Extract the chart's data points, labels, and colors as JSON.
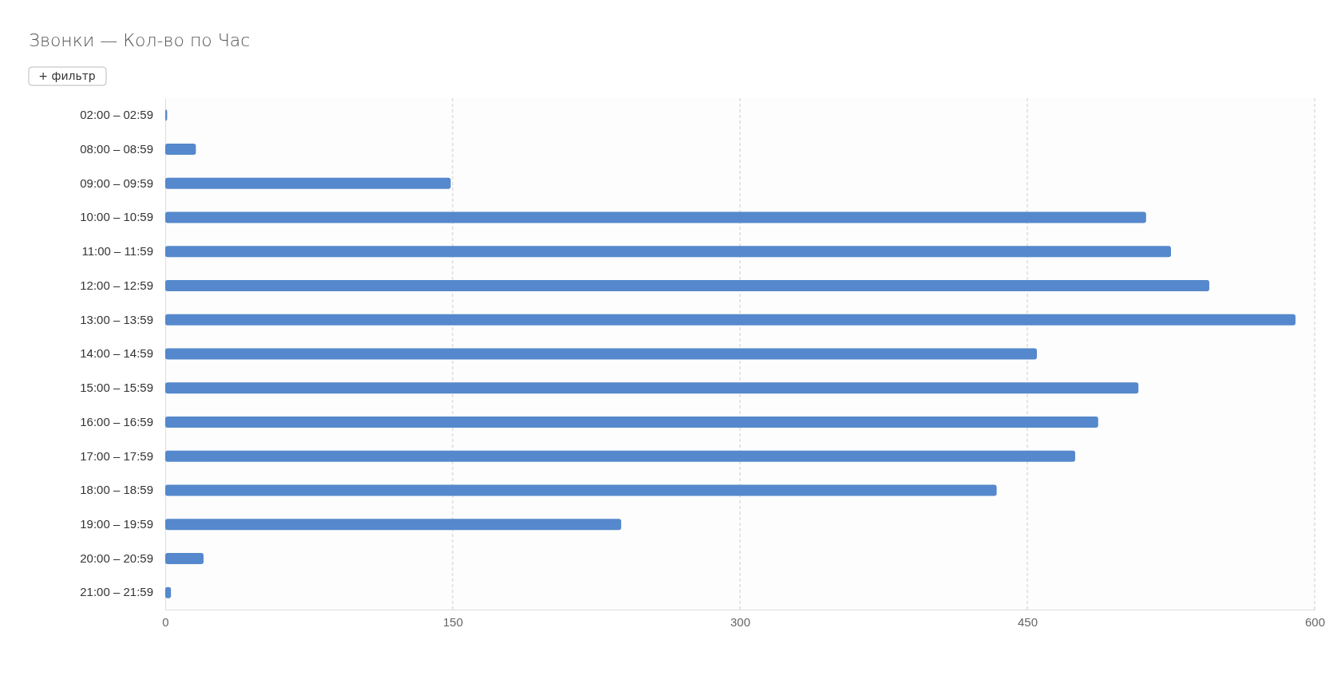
{
  "chart_data": {
    "type": "bar",
    "orientation": "horizontal",
    "title": "Звонки — Кол-во по Час",
    "annotations": [
      "+ фильтр"
    ],
    "categories": [
      "02:00 – 02:59",
      "08:00 – 08:59",
      "09:00 – 09:59",
      "10:00 – 10:59",
      "11:00 – 11:59",
      "12:00 – 12:59",
      "13:00 – 13:59",
      "14:00 – 14:59",
      "15:00 – 15:59",
      "16:00 – 16:59",
      "17:00 – 17:59",
      "18:00 – 18:59",
      "19:00 – 19:59",
      "20:00 – 20:59",
      "21:00 – 21:59"
    ],
    "values": [
      1,
      16,
      149,
      512,
      525,
      545,
      590,
      455,
      508,
      487,
      475,
      434,
      238,
      20,
      3
    ],
    "color": "#5588cc",
    "xlim": [
      0,
      600
    ],
    "xticks": [
      0,
      150,
      300,
      450,
      600
    ],
    "grid": "x"
  }
}
